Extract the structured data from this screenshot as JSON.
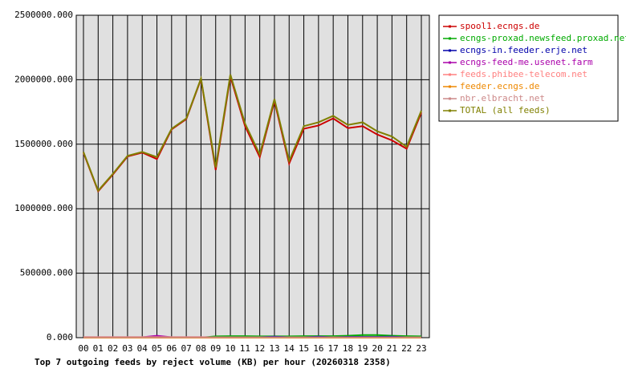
{
  "chart_data": {
    "type": "line",
    "title": "Top 7 outgoing feeds by reject volume (KB) per hour (20260318 2358)",
    "categories": [
      "00",
      "01",
      "02",
      "03",
      "04",
      "05",
      "06",
      "07",
      "08",
      "09",
      "10",
      "11",
      "12",
      "13",
      "14",
      "15",
      "16",
      "17",
      "18",
      "19",
      "20",
      "21",
      "22",
      "23"
    ],
    "ylim": [
      0,
      2500000
    ],
    "yticks": [
      {
        "value": 0,
        "label": "0.000"
      },
      {
        "value": 500000,
        "label": "500000.000"
      },
      {
        "value": 1000000,
        "label": "1000000.000"
      },
      {
        "value": 1500000,
        "label": "1500000.000"
      },
      {
        "value": 2000000,
        "label": "2000000.000"
      },
      {
        "value": 2500000,
        "label": "2500000.000"
      }
    ],
    "grid": true,
    "legend": "right",
    "series": [
      {
        "name": "spool1.ecngs.de",
        "color": "#cc0000",
        "values": [
          1435000,
          1135000,
          1265000,
          1405000,
          1435000,
          1385000,
          1615000,
          1695000,
          2005000,
          1300000,
          2025000,
          1640000,
          1400000,
          1835000,
          1350000,
          1620000,
          1645000,
          1700000,
          1625000,
          1640000,
          1575000,
          1530000,
          1465000,
          1745000
        ]
      },
      {
        "name": "ecngs-proxad.newsfeed.proxad.net",
        "color": "#00aa00",
        "values": [
          0,
          0,
          0,
          0,
          0,
          0,
          0,
          0,
          0,
          10000,
          12000,
          12000,
          10000,
          10000,
          10000,
          12000,
          12000,
          12000,
          15000,
          20000,
          20000,
          15000,
          12000,
          10000
        ]
      },
      {
        "name": "ecngs-in.feeder.erje.net",
        "color": "#0000aa",
        "values": [
          2000,
          2000,
          2000,
          2000,
          2000,
          2000,
          2000,
          2000,
          2000,
          3000,
          3000,
          3000,
          3000,
          8000,
          3000,
          3000,
          8000,
          3000,
          6000,
          6000,
          6000,
          8000,
          3000,
          3000
        ]
      },
      {
        "name": "ecngs-feed-me.usenet.farm",
        "color": "#aa00aa",
        "values": [
          3000,
          3000,
          3000,
          3000,
          3000,
          15000,
          3000,
          3000,
          3000,
          3000,
          3000,
          3000,
          3000,
          3000,
          3000,
          3000,
          3000,
          3000,
          3000,
          3000,
          3000,
          3000,
          3000,
          3000
        ]
      },
      {
        "name": "feeds.phibee-telecom.net",
        "color": "#ff8080",
        "values": [
          5000,
          5000,
          5000,
          5000,
          5000,
          5000,
          5000,
          5000,
          5000,
          2000,
          2000,
          2000,
          2000,
          2000,
          2000,
          2000,
          2000,
          2000,
          2000,
          2000,
          2000,
          2000,
          2000,
          2000
        ]
      },
      {
        "name": "feeder.ecngs.de",
        "color": "#ee8800",
        "values": [
          0,
          0,
          0,
          0,
          0,
          0,
          0,
          0,
          0,
          0,
          0,
          0,
          0,
          0,
          0,
          0,
          0,
          0,
          0,
          0,
          0,
          0,
          0,
          0
        ]
      },
      {
        "name": "nbr.elbracht.net",
        "color": "#cc8888",
        "values": [
          3000,
          3000,
          3000,
          3000,
          3000,
          3000,
          3000,
          3000,
          3000,
          3000,
          3000,
          3000,
          3000,
          3000,
          3000,
          3000,
          3000,
          3000,
          3000,
          3000,
          3000,
          3000,
          3000,
          3000
        ]
      },
      {
        "name": "TOTAL (all feeds)",
        "color": "#808000",
        "values": [
          1440000,
          1140000,
          1270000,
          1410000,
          1440000,
          1400000,
          1620000,
          1700000,
          2010000,
          1320000,
          2040000,
          1660000,
          1420000,
          1850000,
          1370000,
          1640000,
          1670000,
          1720000,
          1650000,
          1670000,
          1600000,
          1560000,
          1480000,
          1760000
        ]
      }
    ]
  }
}
